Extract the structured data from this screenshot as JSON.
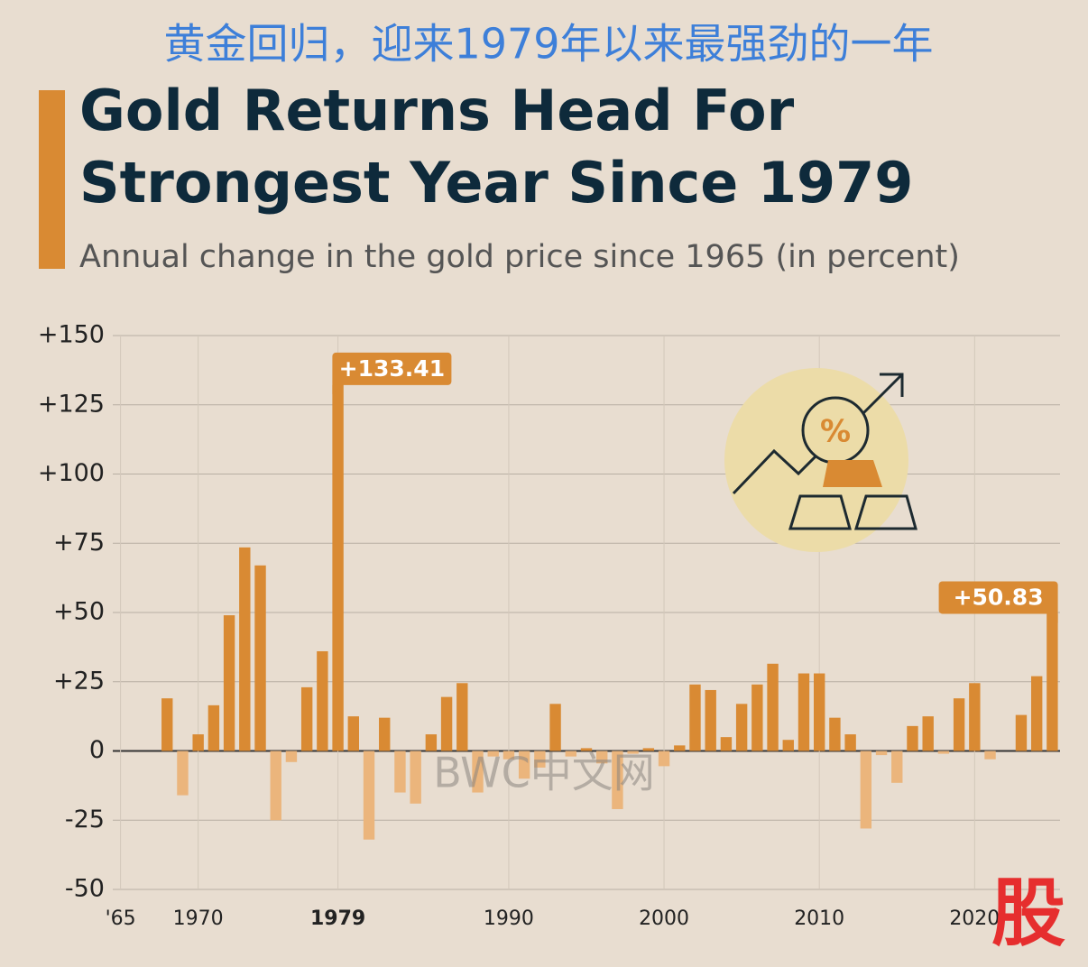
{
  "header": {
    "cn_title": "黄金回归，迎来1979年以来最强劲的一年",
    "watermark": "BWC中文网",
    "logo": "股"
  },
  "chart_data": {
    "type": "bar",
    "title": "Gold Returns Head For Strongest Year Since 1979",
    "subtitle": "Annual change in the gold price since 1965 (in percent)",
    "x": [
      1965,
      1966,
      1967,
      1968,
      1969,
      1970,
      1971,
      1972,
      1973,
      1974,
      1975,
      1976,
      1977,
      1978,
      1979,
      1980,
      1981,
      1982,
      1983,
      1984,
      1985,
      1986,
      1987,
      1988,
      1989,
      1990,
      1991,
      1992,
      1993,
      1994,
      1995,
      1996,
      1997,
      1998,
      1999,
      2000,
      2001,
      2002,
      2003,
      2004,
      2005,
      2006,
      2007,
      2008,
      2009,
      2010,
      2011,
      2012,
      2013,
      2014,
      2015,
      2016,
      2017,
      2018,
      2019,
      2020,
      2021,
      2022,
      2023,
      2024,
      2025
    ],
    "values": [
      0,
      0,
      0,
      19,
      -16,
      6,
      16.5,
      49,
      73.5,
      67,
      -25,
      -4,
      23,
      36,
      133.41,
      12.5,
      -32,
      12,
      -15,
      -19,
      6,
      19.5,
      24.5,
      -15,
      -2,
      -3,
      -10,
      -6,
      17,
      -2,
      1,
      -4.5,
      -21,
      -1,
      1,
      -5.5,
      2,
      24,
      22,
      5,
      17,
      24,
      31.5,
      4,
      28,
      28,
      12,
      6,
      -28,
      -1.5,
      -11.5,
      9,
      12.5,
      -1,
      19,
      24.5,
      -3,
      0,
      13,
      27,
      50.83
    ],
    "value_labels": [
      null,
      null,
      null,
      null,
      null,
      null,
      null,
      null,
      null,
      null,
      null,
      null,
      null,
      null,
      "+133.41",
      null,
      null,
      null,
      null,
      null,
      null,
      null,
      null,
      null,
      null,
      null,
      null,
      null,
      null,
      null,
      null,
      null,
      null,
      null,
      null,
      null,
      null,
      null,
      null,
      null,
      null,
      null,
      null,
      null,
      null,
      null,
      null,
      null,
      null,
      null,
      null,
      null,
      null,
      null,
      null,
      null,
      null,
      null,
      null,
      null,
      "+50.83"
    ],
    "color": "#d98a33",
    "negative_color": "#ebb57c",
    "xlim": [
      1964.5,
      2025.5
    ],
    "xticks": [
      {
        "value": 1965,
        "label": "'65"
      },
      1970,
      1979,
      1990,
      2000,
      2010,
      2020
    ],
    "highlight_xtick": 1979,
    "ylim": [
      -50,
      150
    ],
    "yticks": [
      {
        "value": 150,
        "label": "+150"
      },
      {
        "value": 125,
        "label": "+125"
      },
      {
        "value": 100,
        "label": "+100"
      },
      {
        "value": 75,
        "label": "+75"
      },
      {
        "value": 50,
        "label": "+50"
      },
      {
        "value": 25,
        "label": "+25"
      },
      0,
      -25,
      -50
    ],
    "grid": true
  }
}
